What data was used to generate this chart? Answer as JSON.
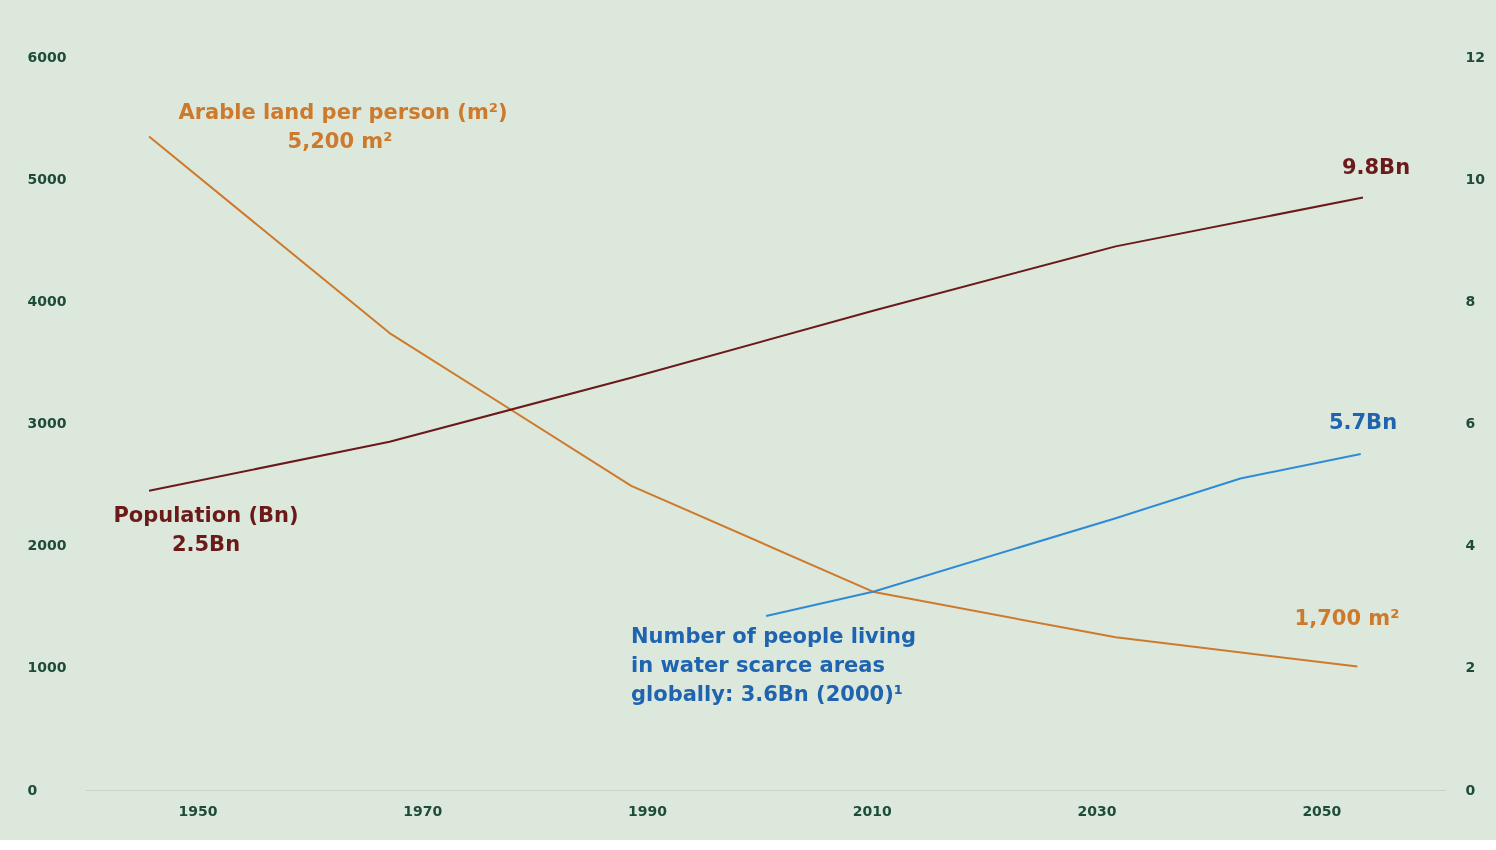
{
  "chart_data": {
    "type": "line",
    "xlim": [
      1940,
      2061
    ],
    "xticks": [
      1950,
      1970,
      1990,
      2010,
      2030,
      2050
    ],
    "ylim": [
      0,
      6000
    ],
    "yticks": [
      0,
      1000,
      2000,
      3000,
      4000,
      5000,
      6000
    ],
    "y2lim": [
      0,
      12
    ],
    "y2ticks": [
      0,
      2,
      4,
      6,
      8,
      10,
      12
    ],
    "grid": false,
    "marker": "none",
    "line_style": "solid",
    "series": [
      {
        "name": "Arable land per person (m²)",
        "color": "#cd7a2c",
        "x": [
          1945.7,
          1967.1,
          1988.6,
          2010.2,
          2031.7,
          2053.2
        ],
        "values": [
          5350,
          3740,
          2490,
          1620,
          1250,
          1010
        ]
      },
      {
        "name": "Population (Bn)",
        "color": "#6b1a1a",
        "axis": "y2",
        "x": [
          1945.7,
          1967.1,
          1988.6,
          2010.2,
          2031.7,
          2053.7
        ],
        "values": [
          4.9,
          5.7,
          6.75,
          7.85,
          8.9,
          9.7
        ]
      },
      {
        "name": "Number of people living in water scarce areas globally: 3.6Bn (2000)¹",
        "color": "#2f8ad6",
        "axis": "y2",
        "x": [
          2000.6,
          2010.2,
          2031.7,
          2042.8,
          2053.5
        ],
        "values": [
          2.85,
          3.25,
          4.45,
          5.1,
          5.5
        ]
      }
    ],
    "annotations": [
      "5,200 m²",
      "1,700 m²",
      "2.5Bn",
      "9.8Bn",
      "5.7Bn"
    ]
  }
}
